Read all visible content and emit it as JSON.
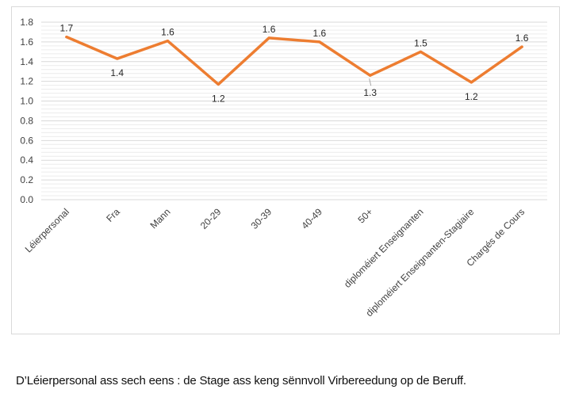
{
  "chart_data": {
    "type": "line",
    "title": "",
    "xlabel": "",
    "ylabel": "",
    "categories": [
      "Léierpersonal",
      "Fra",
      "Mann",
      "20-29",
      "30-39",
      "40-49",
      "50+",
      "diploméiert Enseignanten",
      "diploméiert Enseignanten-Stagiaire",
      "Chargés de Cours"
    ],
    "series": [
      {
        "values": [
          1.65,
          1.43,
          1.61,
          1.17,
          1.64,
          1.6,
          1.26,
          1.5,
          1.19,
          1.55
        ],
        "data_labels": [
          "1.7",
          "1.4",
          "1.6",
          "1.2",
          "1.6",
          "1.6",
          "1.3",
          "1.5",
          "1.2",
          "1.6"
        ],
        "color": "#ED7D31"
      }
    ],
    "ylim": [
      0,
      1.8
    ],
    "yticks": [
      "0.0",
      "0.2",
      "0.4",
      "0.6",
      "0.8",
      "1.0",
      "1.2",
      "1.4",
      "1.6",
      "1.8"
    ],
    "grid": true,
    "legend": "none"
  },
  "caption": "D’Léierpersonal ass sech eens : de Stage ass keng sënnvoll Virbereedung op de Beruff."
}
